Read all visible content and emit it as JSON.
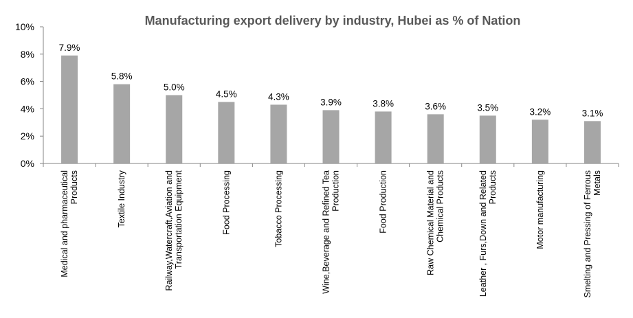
{
  "chart_data": {
    "type": "bar",
    "title": "Manufacturing export delivery by industry, Hubei as % of Nation",
    "categories": [
      [
        "Medical and pharmaceutical",
        "Products"
      ],
      [
        "Textile Industry"
      ],
      [
        "Railway,Watercraft,Aviation and",
        "Transportation Equipment"
      ],
      [
        "Food Processing"
      ],
      [
        "Tobacco Processing"
      ],
      [
        "Wine,Beverage and Refined Tea",
        "Production"
      ],
      [
        "Food Production"
      ],
      [
        "Raw Chemical Material and",
        "Chemical Products"
      ],
      [
        "Leather , Furs,Down and Related",
        "Products"
      ],
      [
        "Motor manufacturing"
      ],
      [
        "Smelting and Pressing of Ferrous",
        "Metals"
      ]
    ],
    "values": [
      7.9,
      5.8,
      5.0,
      4.5,
      4.3,
      3.9,
      3.8,
      3.6,
      3.5,
      3.2,
      3.1
    ],
    "data_labels": [
      "7.9%",
      "5.8%",
      "5.0%",
      "4.5%",
      "4.3%",
      "3.9%",
      "3.8%",
      "3.6%",
      "3.5%",
      "3.2%",
      "3.1%"
    ],
    "ylim": [
      0,
      10
    ],
    "y_ticks": [
      0,
      2,
      4,
      6,
      8,
      10
    ],
    "y_tick_labels": [
      "0%",
      "2%",
      "4%",
      "6%",
      "8%",
      "10%"
    ],
    "xlabel": "",
    "ylabel": "",
    "grid": false,
    "legend": "none",
    "colors": {
      "bar": "#a6a6a6",
      "axis": "#868686",
      "text": "#000000",
      "title": "#595959"
    }
  }
}
